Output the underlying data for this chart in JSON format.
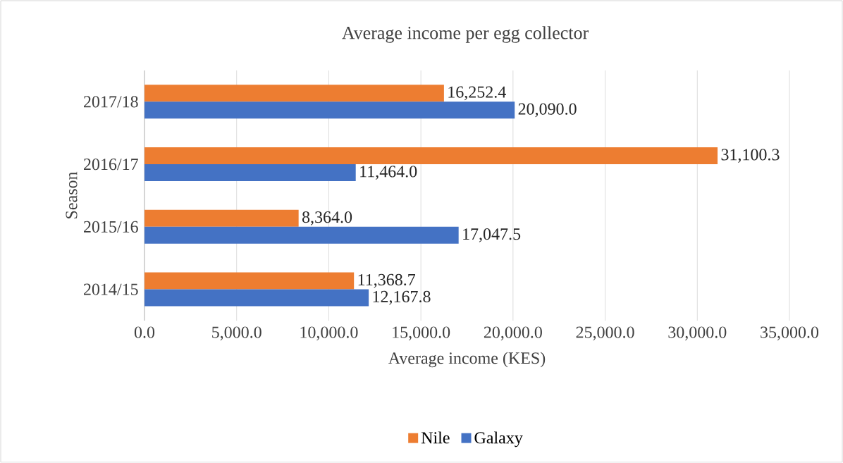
{
  "chart_data": {
    "type": "bar",
    "orientation": "horizontal",
    "title": "Average income per egg collector",
    "xlabel": "Average income (KES)",
    "ylabel": "Season",
    "categories": [
      "2017/18",
      "2016/17",
      "2015/16",
      "2014/15"
    ],
    "series": [
      {
        "name": "Nile",
        "color": "#ed7d31",
        "values": [
          16252.4,
          31100.3,
          8364.0,
          11368.7
        ],
        "value_labels": [
          "16,252.4",
          "31,100.3",
          "8,364.0",
          "11,368.7"
        ]
      },
      {
        "name": "Galaxy",
        "color": "#4472c4",
        "values": [
          20090.0,
          11464.0,
          17047.5,
          12167.8
        ],
        "value_labels": [
          "20,090.0",
          "11,464.0",
          "17,047.5",
          "12,167.8"
        ]
      }
    ],
    "xlim": [
      0,
      35000
    ],
    "xticks": [
      {
        "value": 0,
        "label": "0.0"
      },
      {
        "value": 5000,
        "label": "5,000.0"
      },
      {
        "value": 10000,
        "label": "10,000.0"
      },
      {
        "value": 15000,
        "label": "15,000.0"
      },
      {
        "value": 20000,
        "label": "20,000.0"
      },
      {
        "value": 25000,
        "label": "25,000.0"
      },
      {
        "value": 30000,
        "label": "30,000.0"
      },
      {
        "value": 35000,
        "label": "35,000.0"
      }
    ],
    "grid": "x",
    "legend": "bottom"
  }
}
